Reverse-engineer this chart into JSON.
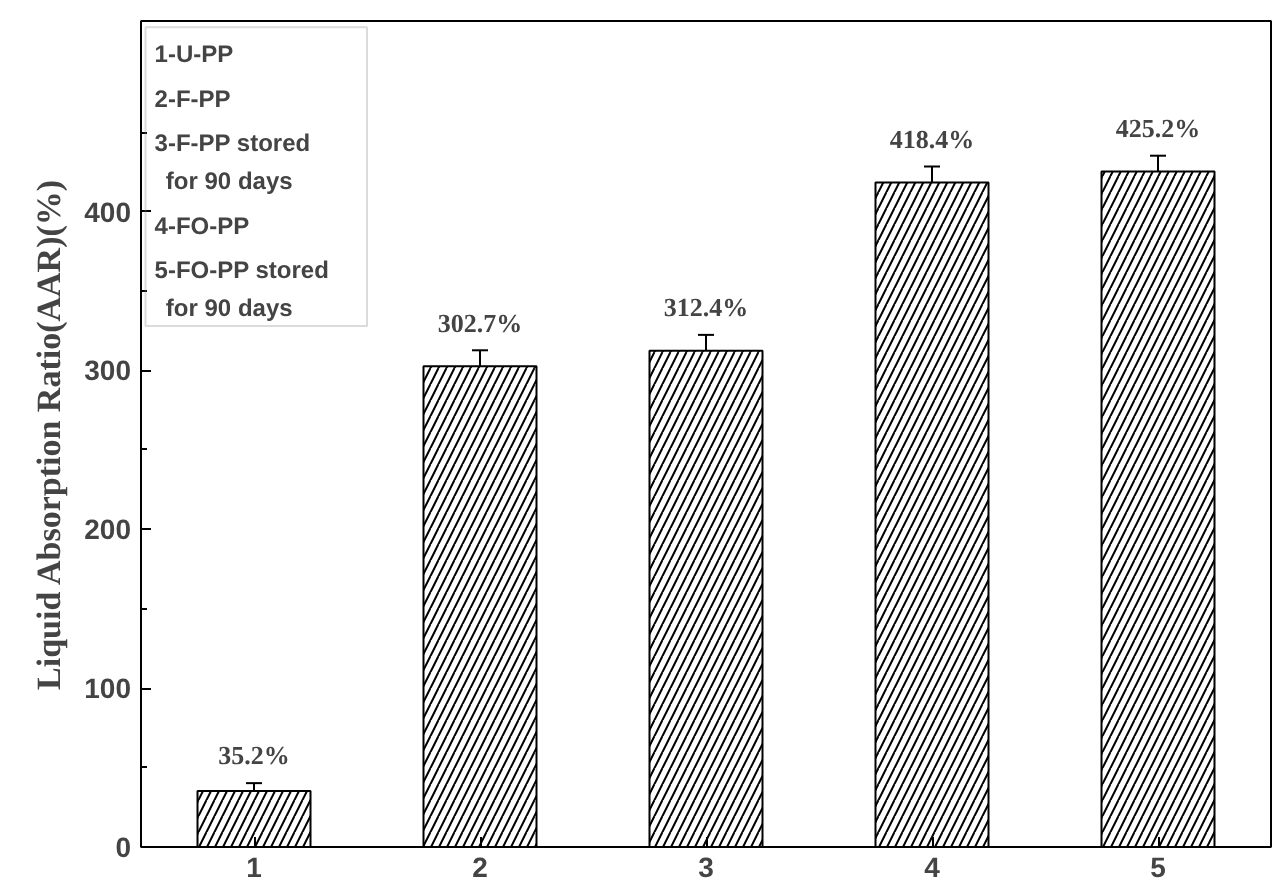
{
  "chart_data": {
    "type": "bar",
    "ylabel": "Liquid Absorption Ratio(AAR)(%)",
    "categories": [
      "1",
      "2",
      "3",
      "4",
      "5"
    ],
    "values": [
      35.2,
      302.7,
      312.4,
      418.4,
      425.2
    ],
    "errors": [
      5,
      10,
      10,
      10,
      10
    ],
    "value_labels": [
      "35.2%",
      "302.7%",
      "312.4%",
      "418.4%",
      "425.2%"
    ],
    "color": "#ffffff",
    "ylim": [
      0,
      520
    ],
    "yticks": [
      0,
      100,
      200,
      300,
      400
    ],
    "grid": false,
    "annotations": [
      "1-U-PP",
      "2-F-PP",
      "3-F-PP stored\nfor 90 days",
      "4-FO-PP",
      "5-FO-PP stored\nfor 90 days"
    ]
  }
}
